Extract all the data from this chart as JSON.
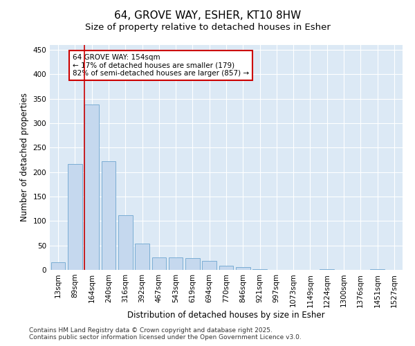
{
  "title": "64, GROVE WAY, ESHER, KT10 8HW",
  "subtitle": "Size of property relative to detached houses in Esher",
  "xlabel": "Distribution of detached houses by size in Esher",
  "ylabel": "Number of detached properties",
  "categories": [
    "13sqm",
    "89sqm",
    "164sqm",
    "240sqm",
    "316sqm",
    "392sqm",
    "467sqm",
    "543sqm",
    "619sqm",
    "694sqm",
    "770sqm",
    "846sqm",
    "921sqm",
    "997sqm",
    "1073sqm",
    "1149sqm",
    "1224sqm",
    "1300sqm",
    "1376sqm",
    "1451sqm",
    "1527sqm"
  ],
  "values": [
    15,
    217,
    338,
    222,
    112,
    54,
    26,
    25,
    24,
    18,
    9,
    5,
    1,
    0,
    0,
    0,
    1,
    0,
    0,
    1,
    0
  ],
  "bar_color": "#c5d8ee",
  "bar_edge_color": "#7aadd4",
  "marker_line_color": "#cc0000",
  "marker_bar_index": 2,
  "annotation_text": "64 GROVE WAY: 154sqm\n← 17% of detached houses are smaller (179)\n82% of semi-detached houses are larger (857) →",
  "annotation_box_facecolor": "#ffffff",
  "annotation_box_edgecolor": "#cc0000",
  "ylim": [
    0,
    460
  ],
  "yticks": [
    0,
    50,
    100,
    150,
    200,
    250,
    300,
    350,
    400,
    450
  ],
  "plot_bg_color": "#dce9f5",
  "fig_bg_color": "#ffffff",
  "grid_color": "#ffffff",
  "footer_text": "Contains HM Land Registry data © Crown copyright and database right 2025.\nContains public sector information licensed under the Open Government Licence v3.0.",
  "title_fontsize": 11,
  "subtitle_fontsize": 9.5,
  "label_fontsize": 8.5,
  "tick_fontsize": 7.5,
  "annotation_fontsize": 7.5,
  "footer_fontsize": 6.5
}
